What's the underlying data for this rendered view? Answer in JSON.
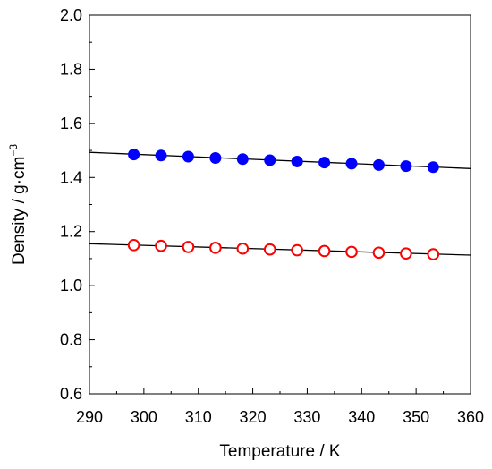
{
  "chart_data": {
    "type": "scatter",
    "xlabel": "Temperature / K",
    "ylabel_main": "Density / g·cm",
    "ylabel_sup": "−3",
    "xlim": [
      290,
      360
    ],
    "ylim": [
      0.6,
      2.0
    ],
    "xticks": [
      290,
      300,
      310,
      320,
      330,
      340,
      350,
      360
    ],
    "yticks": [
      0.6,
      0.8,
      1.0,
      1.2,
      1.4,
      1.6,
      1.8,
      2.0
    ],
    "xtick_labels": [
      "290",
      "300",
      "310",
      "320",
      "330",
      "340",
      "350",
      "360"
    ],
    "ytick_labels": [
      "0.6",
      "0.8",
      "1.0",
      "1.2",
      "1.4",
      "1.6",
      "1.8",
      "2.0"
    ],
    "grid": false,
    "series": [
      {
        "marker": "filled-circle",
        "color": "#0000ff",
        "x": [
          298.15,
          303.15,
          308.15,
          313.15,
          318.15,
          323.15,
          328.15,
          333.15,
          338.15,
          343.15,
          348.15,
          353.15
        ],
        "y": [
          1.485,
          1.481,
          1.477,
          1.472,
          1.468,
          1.464,
          1.459,
          1.455,
          1.451,
          1.446,
          1.442,
          1.438
        ],
        "fit_line": {
          "x": [
            290,
            360
          ],
          "y": [
            1.493,
            1.433
          ],
          "color": "#000000"
        }
      },
      {
        "marker": "open-circle",
        "color": "#ff0000",
        "x": [
          298.15,
          303.15,
          308.15,
          313.15,
          318.15,
          323.15,
          328.15,
          333.15,
          338.15,
          343.15,
          348.15,
          353.15
        ],
        "y": [
          1.15,
          1.147,
          1.143,
          1.14,
          1.137,
          1.134,
          1.131,
          1.128,
          1.125,
          1.122,
          1.119,
          1.116
        ],
        "fit_line": {
          "x": [
            290,
            360
          ],
          "y": [
            1.155,
            1.113
          ],
          "color": "#000000"
        }
      }
    ]
  }
}
